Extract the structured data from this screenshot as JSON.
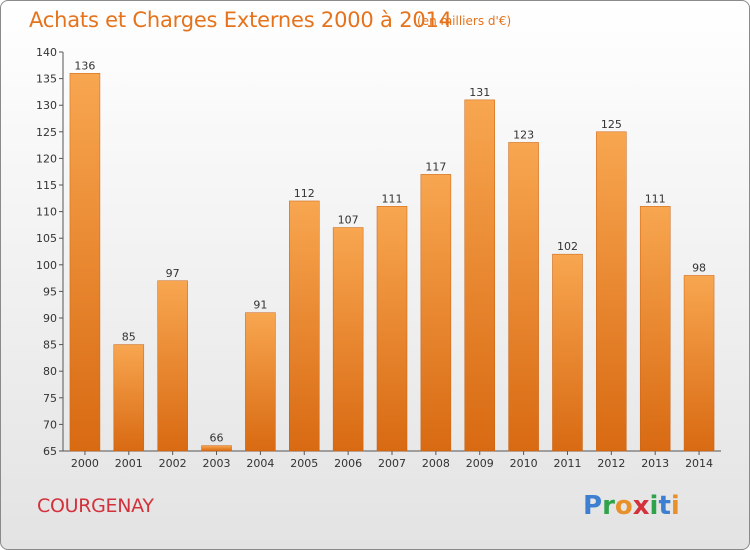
{
  "header": {
    "title": "Achats et Charges Externes 2000 à 2014",
    "subtitle": "(en milliers d'€)"
  },
  "footer": {
    "city": "COURGENAY",
    "logo_letters": [
      "P",
      "r",
      "o",
      "x",
      "i",
      "t",
      "i"
    ]
  },
  "colors": {
    "bar_light": "#f8a650",
    "bar_dark": "#d86a12",
    "title": "#e5731c",
    "city": "#d3313b",
    "logo": [
      "#3d7fd1",
      "#2fa34a",
      "#e8912a",
      "#d3313b",
      "#2fa34a",
      "#3d7fd1",
      "#e8912a"
    ]
  },
  "chart_data": {
    "type": "bar",
    "title": "Achats et Charges Externes 2000 à 2014",
    "subtitle": "(en milliers d'€)",
    "categories": [
      "2000",
      "2001",
      "2002",
      "2003",
      "2004",
      "2005",
      "2006",
      "2007",
      "2008",
      "2009",
      "2010",
      "2011",
      "2012",
      "2013",
      "2014"
    ],
    "values": [
      136,
      85,
      97,
      66,
      91,
      112,
      107,
      111,
      117,
      131,
      123,
      102,
      125,
      111,
      98
    ],
    "ylim": [
      65,
      140
    ],
    "yticks": [
      65,
      70,
      75,
      80,
      85,
      90,
      95,
      100,
      105,
      110,
      115,
      120,
      125,
      130,
      135,
      140
    ],
    "grid": false,
    "data_labels": true
  }
}
